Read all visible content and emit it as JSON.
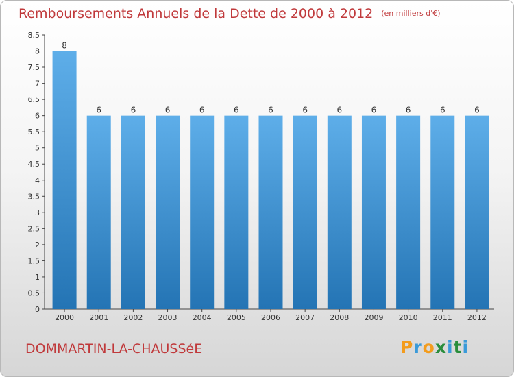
{
  "header": {
    "title": "Remboursements Annuels de la Dette de 2000 à 2012",
    "subtitle": "(en milliers d'€)"
  },
  "footer": {
    "place": "DOMMARTIN-LA-CHAUSSéE",
    "logo": {
      "letters": [
        "P",
        "r",
        "o",
        "x",
        "i",
        "t",
        "i"
      ],
      "colors": [
        "#f39c1d",
        "#3a9ad9",
        "#f39c1d",
        "#2a8d3c",
        "#3a9ad9",
        "#2a8d3c",
        "#3a9ad9"
      ]
    }
  },
  "chart_data": {
    "type": "bar",
    "title": "Remboursements Annuels de la Dette de 2000 à 2012",
    "subtitle": "(en milliers d'€)",
    "categories": [
      "2000",
      "2001",
      "2002",
      "2003",
      "2004",
      "2005",
      "2006",
      "2007",
      "2008",
      "2009",
      "2010",
      "2011",
      "2012"
    ],
    "values": [
      8,
      6,
      6,
      6,
      6,
      6,
      6,
      6,
      6,
      6,
      6,
      6,
      6
    ],
    "data_labels": [
      "8",
      "6",
      "6",
      "6",
      "6",
      "6",
      "6",
      "6",
      "6",
      "6",
      "6",
      "6",
      "6"
    ],
    "ylim": [
      0,
      8.5
    ],
    "yticks": [
      0,
      0.5,
      1,
      1.5,
      2,
      2.5,
      3,
      3.5,
      4,
      4.5,
      5,
      5.5,
      6,
      6.5,
      7,
      7.5,
      8,
      8.5
    ],
    "ytick_labels": [
      "0",
      "0.5",
      "1",
      "1.5",
      "2",
      "2.5",
      "3",
      "3.5",
      "4",
      "4.5",
      "5",
      "5.5",
      "6",
      "6.5",
      "7",
      "7.5",
      "8",
      "8.5"
    ],
    "grid": false,
    "colors": {
      "bar_light": "#5eaee9",
      "bar_dark": "#2474b4",
      "axis": "#444444"
    }
  }
}
